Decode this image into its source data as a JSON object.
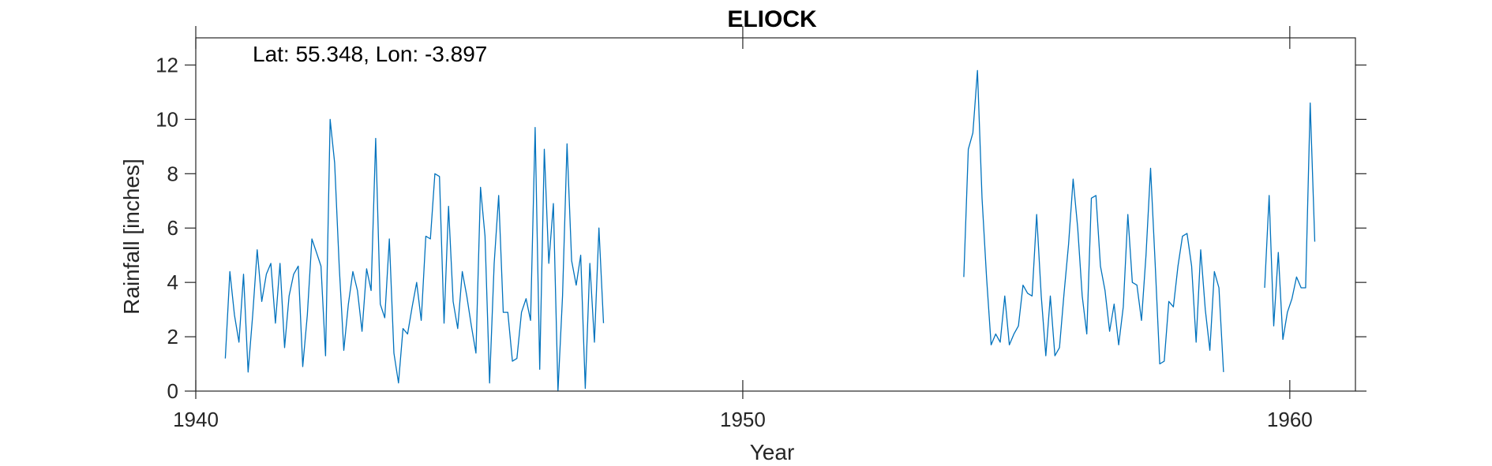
{
  "chart_data": {
    "type": "line",
    "title": "ELIOCK",
    "xlabel": "Year",
    "ylabel": "Rainfall [inches]",
    "annotation": "Lat: 55.348, Lon: -3.897",
    "xlim": [
      1940,
      1961.2
    ],
    "ylim": [
      0,
      13
    ],
    "xticks": [
      1940,
      1950,
      1960
    ],
    "xtick_labels": [
      "1940",
      "1950",
      "1960"
    ],
    "yticks": [
      0,
      2,
      4,
      6,
      8,
      10,
      12
    ],
    "ytick_labels": [
      "0",
      "2",
      "4",
      "6",
      "8",
      "10",
      "12"
    ],
    "grid": false,
    "line_color": "#0072BD",
    "series": [
      {
        "name": "Rainfall",
        "segments": [
          {
            "start": 1940.54,
            "step": 0.0833,
            "values": [
              1.2,
              4.4,
              2.8,
              1.8,
              4.3,
              0.7,
              2.8,
              5.2,
              3.3,
              4.3,
              4.7,
              2.5,
              4.7,
              1.6,
              3.5,
              4.3,
              4.6,
              0.9,
              2.8,
              5.6,
              5.1,
              4.6,
              1.3,
              10.0,
              8.4,
              4.6,
              1.5,
              3.2,
              4.4,
              3.7,
              2.2,
              4.5,
              3.7,
              9.3,
              3.2,
              2.7,
              5.6,
              1.4,
              0.3,
              2.3,
              2.1,
              3.1,
              4.0,
              2.6,
              5.7,
              5.6,
              8.0,
              7.9,
              2.5,
              6.8,
              3.3,
              2.3,
              4.4,
              3.5,
              2.4,
              1.4,
              7.5,
              5.7,
              0.3,
              4.7,
              7.2,
              2.9,
              2.9,
              1.1,
              1.2,
              2.9,
              3.4,
              2.6,
              9.7,
              0.8,
              8.9,
              4.7,
              6.9,
              0.0,
              3.5,
              9.1,
              4.8,
              3.9,
              5.0,
              0.1,
              4.7,
              1.8,
              6.0,
              2.5
            ]
          },
          {
            "start": 1954.04,
            "step": 0.0833,
            "values": [
              4.2,
              8.9,
              9.5,
              11.8,
              7.1,
              4.2,
              1.7,
              2.1,
              1.8,
              3.5,
              1.7,
              2.1,
              2.4,
              3.9,
              3.6,
              3.5,
              6.5,
              3.5,
              1.3,
              3.5,
              1.3,
              1.6,
              3.6,
              5.4,
              7.8,
              6.0,
              3.5,
              2.1,
              7.1,
              7.2,
              4.6,
              3.7,
              2.2,
              3.2,
              1.7,
              3.1,
              6.5,
              4.0,
              3.9,
              2.6,
              5.0,
              8.2,
              4.7,
              1.0,
              1.1,
              3.3,
              3.1,
              4.6,
              5.7,
              5.8,
              4.6,
              1.8,
              5.2,
              3.0,
              1.5,
              4.4,
              3.8,
              0.7
            ]
          },
          {
            "start": 1959.54,
            "step": 0.0833,
            "values": [
              3.8,
              7.2,
              2.4,
              5.1,
              1.9,
              2.9,
              3.4,
              4.2,
              3.8,
              3.8,
              10.6,
              5.5
            ]
          }
        ]
      }
    ]
  }
}
